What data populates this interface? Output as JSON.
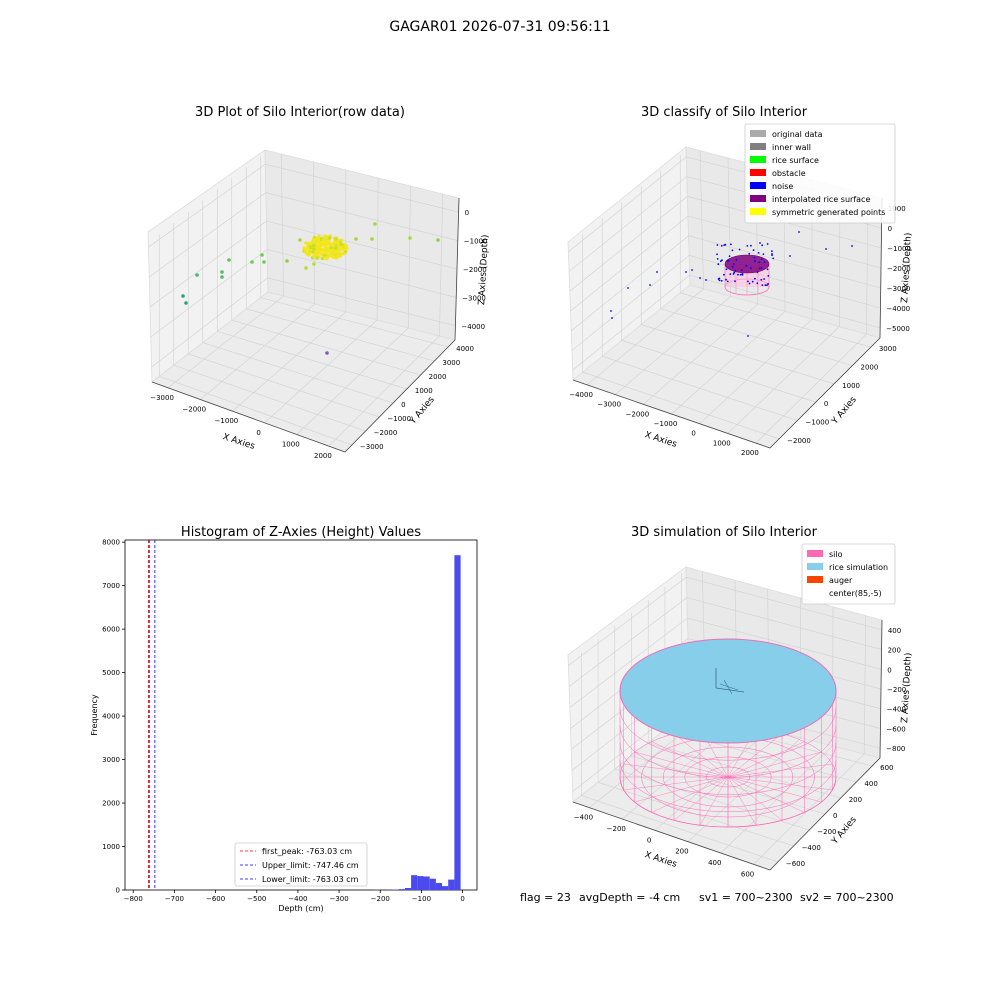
{
  "figure_title": "GAGAR01 2026-07-31 09:56:11",
  "colors": {
    "original": "#aaaaaa",
    "wall": "#808080",
    "rice": "#00ff00",
    "obstacle": "#ff0000",
    "noise": "#0000ff",
    "interp": "#800080",
    "sym": "#ffff00",
    "hist_bar": "#4a4aef",
    "silo": "#ff69b4",
    "rice_sim": "#87ceeb",
    "auger": "#ff4500"
  },
  "chart_data": [
    {
      "type": "scatter",
      "title": "3D Plot of Silo Interior(row data)",
      "xlabel": "X Axies",
      "ylabel": "Y Axies",
      "zlabel": "Z Axies (Depth)",
      "x_ticks": [
        "−3000",
        "−2000",
        "−1000",
        "0",
        "1000",
        "2000"
      ],
      "y_ticks": [
        "4000",
        "3000",
        "2000",
        "1000",
        "0",
        "−1000",
        "−2000",
        "−3000"
      ],
      "z_ticks": [
        "0",
        "−1000",
        "−2000",
        "−3000",
        "−4000"
      ],
      "color_note": "viridis by depth"
    },
    {
      "type": "scatter",
      "title": "3D classify of Silo Interior",
      "xlabel": "X Axies",
      "ylabel": "Y Axies",
      "zlabel": "Z Axies (Depth)",
      "x_ticks": [
        "−4000",
        "−3000",
        "−2000",
        "−1000",
        "0",
        "1000",
        "2000"
      ],
      "y_ticks": [
        "3000",
        "2000",
        "1000",
        "0",
        "−1000",
        "−2000"
      ],
      "z_ticks": [
        "1000",
        "0",
        "−1000",
        "−2000",
        "−3000",
        "−4000",
        "−5000"
      ],
      "legend_position": "top-right",
      "legend": [
        {
          "label": "original data",
          "color": "#aaaaaa"
        },
        {
          "label": "inner wall",
          "color": "#808080"
        },
        {
          "label": "rice surface",
          "color": "#00ff00"
        },
        {
          "label": "obstacle",
          "color": "#ff0000"
        },
        {
          "label": "noise",
          "color": "#0000ff"
        },
        {
          "label": "interpolated rice surface",
          "color": "#800080"
        },
        {
          "label": "symmetric generated points",
          "color": "#ffff00"
        }
      ]
    },
    {
      "type": "bar",
      "title": "Histogram of Z-Axies (Height) Values",
      "xlabel": "Depth (cm)",
      "ylabel": "Frequency",
      "xlim": [
        -820,
        35
      ],
      "ylim": [
        0,
        8050
      ],
      "x_ticks": [
        -800,
        -700,
        -600,
        -500,
        -400,
        -300,
        -200,
        -100,
        0
      ],
      "y_ticks": [
        0,
        1000,
        2000,
        3000,
        4000,
        5000,
        6000,
        7000,
        8000
      ],
      "bin_width": 15,
      "bins": [
        {
          "x": -215,
          "value": 8
        },
        {
          "x": -185,
          "value": 5
        },
        {
          "x": -170,
          "value": 12
        },
        {
          "x": -155,
          "value": 20
        },
        {
          "x": -140,
          "value": 45
        },
        {
          "x": -125,
          "value": 340
        },
        {
          "x": -110,
          "value": 320
        },
        {
          "x": -95,
          "value": 310
        },
        {
          "x": -80,
          "value": 260
        },
        {
          "x": -65,
          "value": 160
        },
        {
          "x": -50,
          "value": 90
        },
        {
          "x": -35,
          "value": 240
        },
        {
          "x": -20,
          "value": 7700
        }
      ],
      "vlines": [
        {
          "x": -763.03,
          "color": "#ff0000",
          "label": "first_peak: -763.03 cm"
        },
        {
          "x": -747.46,
          "color": "#0000ff",
          "label": "Upper_limit: -747.46 cm"
        },
        {
          "x": -763.03,
          "color": "#0000ff",
          "label": "Lower_limit: -763.03 cm"
        }
      ],
      "legend_position": "lower-center"
    },
    {
      "type": "surface",
      "title": "3D simulation of Silo Interior",
      "xlabel": "X Axies",
      "ylabel": "Y Axies",
      "zlabel": "Z Axies (Depth)",
      "x_ticks": [
        "−400",
        "−200",
        "0",
        "200",
        "400",
        "600"
      ],
      "y_ticks": [
        "600",
        "400",
        "200",
        "0",
        "−200",
        "−400",
        "−600"
      ],
      "z_ticks": [
        "400",
        "200",
        "0",
        "−200",
        "−400",
        "−600",
        "−800"
      ],
      "legend_position": "top-right",
      "legend": [
        {
          "label": "silo",
          "color": "#ff69b4"
        },
        {
          "label": "rice simulation",
          "color": "#87ceeb"
        },
        {
          "label": "auger",
          "color": "#ff4500"
        },
        {
          "label": "center(85,-5)",
          "color": ""
        }
      ]
    }
  ],
  "status": {
    "flag": "flag = 23",
    "avg_depth": "avgDepth = -4 cm",
    "sv1": "sv1 = 700~2300",
    "sv2": "sv2 = 700~2300"
  }
}
